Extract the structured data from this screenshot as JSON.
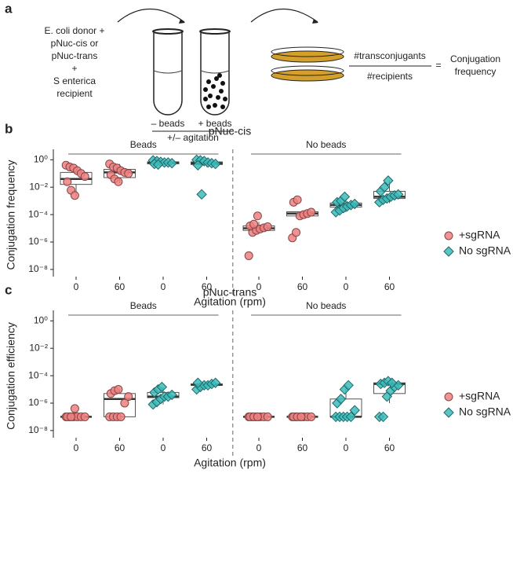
{
  "panel_a": {
    "label": "a",
    "donor_lines": [
      "E. coli donor +",
      "pNuc-cis or",
      "pNuc-trans",
      "+",
      "S enterica",
      "recipient"
    ],
    "tube_labels": [
      "– beads",
      "+ beads"
    ],
    "agitation": "+/– agitation",
    "numerator": "#transconjugants",
    "denominator": "#recipients",
    "equals": "=",
    "result_lines": [
      "Conjugation",
      "frequency"
    ]
  },
  "chart_data": [
    {
      "type": "box",
      "panel": "b",
      "title": "pNuc-cis",
      "y_label": "Conjugation frequency",
      "x_label": "Agitation (rpm)",
      "log_y": true,
      "ylim": [
        3e-09,
        3
      ],
      "yticks": [
        {
          "value": 1e-08,
          "label": "10⁻⁸"
        },
        {
          "value": 1e-06,
          "label": "10⁻⁶"
        },
        {
          "value": 0.0001,
          "label": "10⁻⁴"
        },
        {
          "value": 0.01,
          "label": "10⁻²"
        },
        {
          "value": 1,
          "label": "10⁰"
        }
      ],
      "facets": [
        "Beads",
        "No beads"
      ],
      "categories": [
        "0",
        "60",
        "0",
        "60",
        "0",
        "60",
        "0",
        "60"
      ],
      "legend": "right",
      "series": [
        {
          "name": "+sgRNA",
          "color": "#f08080",
          "marker": "circle",
          "boxes": [
            {
              "whisker_low": 0.002,
              "q1": 0.016,
              "median": 0.04,
              "q3": 0.12,
              "whisker_high": 0.3,
              "points": [
                0.4,
                0.3,
                0.25,
                0.16,
                0.1,
                0.06,
                0.025,
                0.006,
                0.0025
              ]
            },
            {
              "whisker_low": 0.02,
              "q1": 0.05,
              "median": 0.12,
              "q3": 0.2,
              "whisker_high": 0.5,
              "points": [
                0.5,
                0.3,
                0.25,
                0.16,
                0.12,
                0.1,
                0.08,
                0.04,
                0.025
              ]
            },
            null,
            null,
            {
              "whisker_low": 4e-06,
              "q1": 7e-06,
              "median": 1e-05,
              "q3": 1.5e-05,
              "whisker_high": 3e-05,
              "points": [
                1e-07,
                5e-06,
                7e-06,
                9e-06,
                1.1e-05,
                1.3e-05,
                1.5e-05,
                2e-05,
                8e-05
              ]
            },
            {
              "whisker_low": 5e-05,
              "q1": 8e-05,
              "median": 0.00012,
              "q3": 0.00016,
              "whisker_high": 0.0002,
              "points": [
                2e-06,
                5e-06,
                8e-05,
                0.0001,
                0.00012,
                0.00015,
                0.0008,
                0.0012
              ]
            },
            null,
            null
          ]
        },
        {
          "name": "No sgRNA",
          "color": "#3cbcbc",
          "marker": "diamond",
          "boxes": [
            null,
            null,
            {
              "whisker_low": 0.45,
              "q1": 0.5,
              "median": 0.63,
              "q3": 0.7,
              "whisker_high": 0.9,
              "points": [
                0.9,
                0.8,
                0.7,
                0.63,
                0.63,
                0.56,
                0.5,
                0.45
              ]
            },
            {
              "whisker_low": 0.3,
              "q1": 0.45,
              "median": 0.56,
              "q3": 0.7,
              "whisker_high": 1,
              "points": [
                1,
                0.9,
                0.8,
                0.63,
                0.56,
                0.5,
                0.4,
                0.003
              ]
            },
            null,
            null,
            {
              "whisker_low": 0.00015,
              "q1": 0.00035,
              "median": 0.0005,
              "q3": 0.0007,
              "whisker_high": 0.0015,
              "points": [
                0.00015,
                0.0002,
                0.0003,
                0.0004,
                0.0005,
                0.0006,
                0.0008,
                0.001,
                0.002
              ]
            },
            {
              "whisker_low": 0.0007,
              "q1": 0.0015,
              "median": 0.002,
              "q3": 0.005,
              "whisker_high": 0.03,
              "points": [
                0.0008,
                0.0012,
                0.0015,
                0.002,
                0.0025,
                0.003,
                0.005,
                0.01,
                0.03
              ]
            }
          ]
        }
      ]
    },
    {
      "type": "box",
      "panel": "c",
      "title": "pNuc-trans",
      "y_label": "Conjugation efficiency",
      "x_label": "Agitation (rpm)",
      "log_y": true,
      "ylim": [
        3e-09,
        3
      ],
      "yticks": [
        {
          "value": 1e-08,
          "label": "10⁻⁸"
        },
        {
          "value": 1e-06,
          "label": "10⁻⁶"
        },
        {
          "value": 0.0001,
          "label": "10⁻⁴"
        },
        {
          "value": 0.01,
          "label": "10⁻²"
        },
        {
          "value": 1,
          "label": "10⁰"
        }
      ],
      "facets": [
        "Beads",
        "No beads"
      ],
      "categories": [
        "0",
        "60",
        "0",
        "60",
        "0",
        "60",
        "0",
        "60"
      ],
      "legend": "right",
      "series": [
        {
          "name": "+sgRNA",
          "color": "#f08080",
          "marker": "circle",
          "boxes": [
            {
              "whisker_low": 1e-07,
              "q1": 1e-07,
              "median": 1e-07,
              "q3": 1e-07,
              "whisker_high": 1e-07,
              "points": [
                1e-07,
                1e-07,
                1e-07,
                1e-07,
                1e-07,
                1e-07,
                1e-07,
                1e-07,
                4e-07
              ]
            },
            {
              "whisker_low": 1e-07,
              "q1": 1e-07,
              "median": 2e-06,
              "q3": 5e-06,
              "whisker_high": 1e-05,
              "points": [
                1e-07,
                1e-07,
                1e-07,
                1e-07,
                1e-06,
                3e-06,
                5e-06,
                8e-06,
                1e-05
              ]
            },
            null,
            null,
            {
              "whisker_low": 1e-07,
              "q1": 1e-07,
              "median": 1e-07,
              "q3": 1e-07,
              "whisker_high": 1e-07,
              "points": [
                1e-07,
                1e-07,
                1e-07,
                1e-07,
                1e-07,
                1e-07,
                1e-07,
                1e-07,
                1e-07
              ]
            },
            {
              "whisker_low": 1e-07,
              "q1": 1e-07,
              "median": 1e-07,
              "q3": 1e-07,
              "whisker_high": 1e-07,
              "points": [
                1e-07,
                1e-07,
                1e-07,
                1e-07,
                1e-07,
                1e-07,
                1e-07,
                1e-07,
                1e-07
              ]
            },
            null,
            null
          ]
        },
        {
          "name": "No sgRNA",
          "color": "#3cbcbc",
          "marker": "diamond",
          "boxes": [
            null,
            null,
            {
              "whisker_low": 8e-07,
              "q1": 2.5e-06,
              "median": 3e-06,
              "q3": 6e-06,
              "whisker_high": 1.5e-05,
              "points": [
                8e-07,
                1.2e-06,
                2e-06,
                3e-06,
                3e-06,
                4e-06,
                6e-06,
                1e-05,
                1.5e-05
              ]
            },
            {
              "whisker_low": 1.5e-05,
              "q1": 2e-05,
              "median": 2.2e-05,
              "q3": 2.5e-05,
              "whisker_high": 3e-05,
              "points": [
                1e-05,
                1.5e-05,
                2e-05,
                2e-05,
                2.5e-05,
                3e-05,
                3e-05
              ]
            },
            null,
            null,
            {
              "whisker_low": 1e-07,
              "q1": 1e-07,
              "median": 1e-07,
              "q3": 2e-06,
              "whisker_high": 2e-05,
              "points": [
                1e-07,
                1e-07,
                1e-07,
                1e-07,
                1e-07,
                3e-07,
                1e-06,
                2e-06,
                1e-05,
                2e-05
              ]
            },
            {
              "whisker_low": 1e-06,
              "q1": 5e-06,
              "median": 2.5e-05,
              "q3": 3e-05,
              "whisker_high": 4e-05,
              "points": [
                1e-07,
                1e-07,
                3e-06,
                8e-06,
                1.5e-05,
                2e-05,
                2.5e-05,
                3e-05,
                4e-05,
                3e-05
              ]
            }
          ]
        }
      ]
    }
  ]
}
